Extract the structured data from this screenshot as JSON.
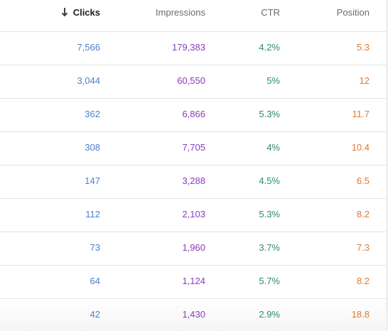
{
  "header": {
    "clicks": "Clicks",
    "impressions": "Impressions",
    "ctr": "CTR",
    "position": "Position"
  },
  "rows": [
    {
      "clicks": "7,566",
      "impressions": "179,383",
      "ctr": "4.2%",
      "position": "5.3"
    },
    {
      "clicks": "3,044",
      "impressions": "60,550",
      "ctr": "5%",
      "position": "12"
    },
    {
      "clicks": "362",
      "impressions": "6,866",
      "ctr": "5.3%",
      "position": "11.7"
    },
    {
      "clicks": "308",
      "impressions": "7,705",
      "ctr": "4%",
      "position": "10.4"
    },
    {
      "clicks": "147",
      "impressions": "3,288",
      "ctr": "4.5%",
      "position": "6.5"
    },
    {
      "clicks": "112",
      "impressions": "2,103",
      "ctr": "5.3%",
      "position": "8.2"
    },
    {
      "clicks": "73",
      "impressions": "1,960",
      "ctr": "3.7%",
      "position": "7.3"
    },
    {
      "clicks": "64",
      "impressions": "1,124",
      "ctr": "5.7%",
      "position": "8.2"
    },
    {
      "clicks": "42",
      "impressions": "1,430",
      "ctr": "2.9%",
      "position": "18.8"
    }
  ],
  "colors": {
    "clicks": "#4a7fd0",
    "impressions": "#8a3db8",
    "ctr": "#2f8a6e",
    "position": "#e0782e"
  },
  "icons": {
    "sort": "arrow-down-icon"
  }
}
